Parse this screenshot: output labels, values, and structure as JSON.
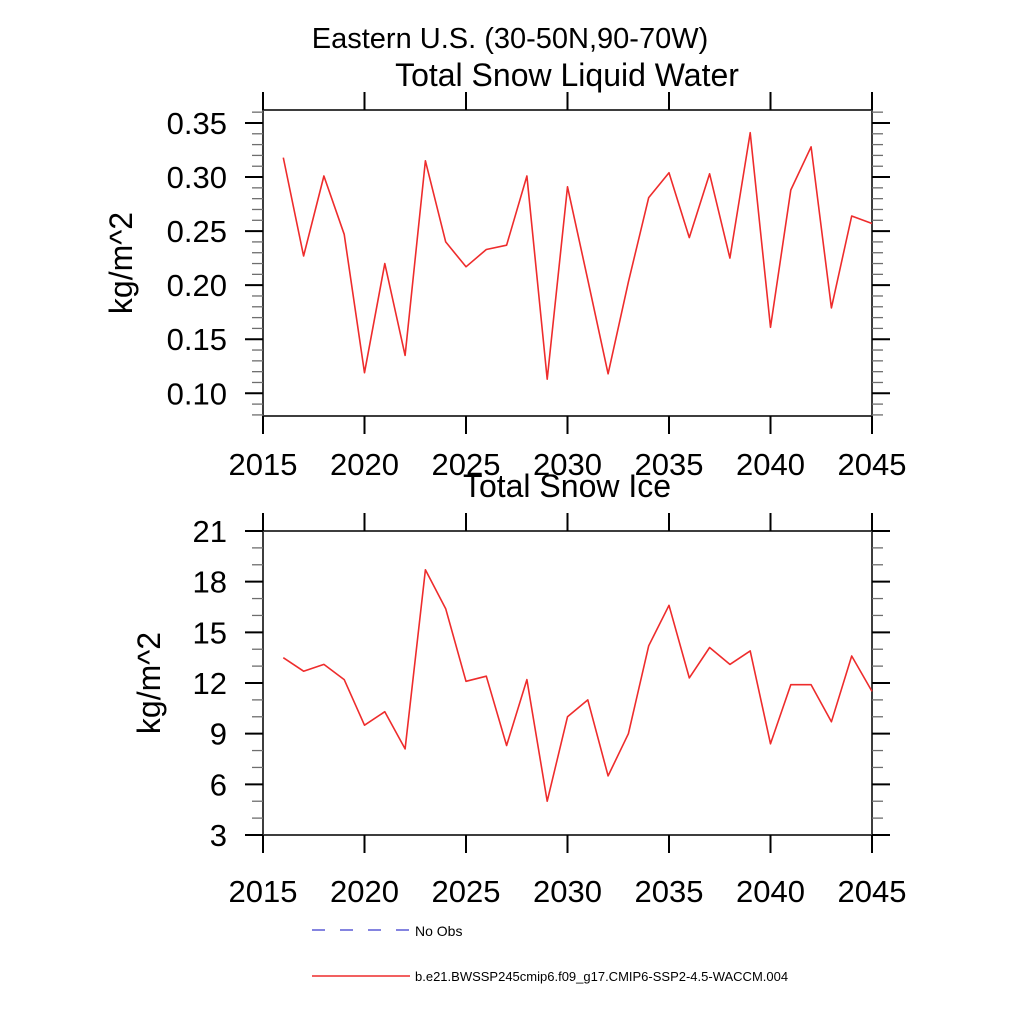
{
  "header": {
    "region_title": "Eastern U.S. (30-50N,90-70W)"
  },
  "style": {
    "series_color": "#ee2c2c",
    "no_obs_color": "#5b5bd6",
    "frame_color": "#3d3d3d",
    "major_tick_color": "#000000",
    "minor_tick_color": "#6e6e6e"
  },
  "legend": [
    {
      "label": "No Obs",
      "style": "dashed",
      "color": "#5b5bd6"
    },
    {
      "label": "b.e21.BWSSP245cmip6.f09_g17.CMIP6-SSP2-4.5-WACCM.004",
      "style": "solid",
      "color": "#ee2c2c"
    }
  ],
  "chart_data": [
    {
      "type": "line",
      "title": "Total Snow Liquid Water",
      "ylabel": "kg/m^2",
      "xlabel": "",
      "legend_position": "below",
      "grid": false,
      "x": [
        2016,
        2017,
        2018,
        2019,
        2020,
        2021,
        2022,
        2023,
        2024,
        2025,
        2026,
        2027,
        2028,
        2029,
        2030,
        2031,
        2032,
        2033,
        2034,
        2035,
        2036,
        2037,
        2038,
        2039,
        2040,
        2041,
        2042,
        2043,
        2044,
        2045
      ],
      "values": [
        0.318,
        0.227,
        0.301,
        0.247,
        0.119,
        0.22,
        0.135,
        0.315,
        0.24,
        0.217,
        0.233,
        0.237,
        0.301,
        0.113,
        0.291,
        0.205,
        0.118,
        0.203,
        0.281,
        0.304,
        0.244,
        0.303,
        0.225,
        0.341,
        0.161,
        0.288,
        0.328,
        0.179,
        0.264,
        0.257
      ],
      "xlim": [
        2015,
        2045
      ],
      "ylim": [
        0.079,
        0.362
      ],
      "xticks": [
        2015,
        2020,
        2025,
        2030,
        2035,
        2040,
        2045
      ],
      "yticks": [
        0.1,
        0.15,
        0.2,
        0.25,
        0.3,
        0.35
      ],
      "ytick_labels": [
        "0.10",
        "0.15",
        "0.20",
        "0.25",
        "0.30",
        "0.35"
      ],
      "y_minor_step": 0.01,
      "line_color": "#ee2c2c"
    },
    {
      "type": "line",
      "title": "Total Snow Ice",
      "ylabel": "kg/m^2",
      "xlabel": "",
      "legend_position": "below",
      "grid": false,
      "x": [
        2016,
        2017,
        2018,
        2019,
        2020,
        2021,
        2022,
        2023,
        2024,
        2025,
        2026,
        2027,
        2028,
        2029,
        2030,
        2031,
        2032,
        2033,
        2034,
        2035,
        2036,
        2037,
        2038,
        2039,
        2040,
        2041,
        2042,
        2043,
        2044,
        2045
      ],
      "values": [
        13.5,
        12.7,
        13.1,
        12.2,
        9.5,
        10.3,
        8.1,
        18.7,
        16.4,
        12.1,
        12.4,
        8.3,
        12.2,
        5.0,
        10.0,
        11.0,
        6.5,
        9.0,
        14.2,
        16.6,
        12.3,
        14.1,
        13.1,
        13.9,
        8.4,
        11.9,
        11.9,
        9.7,
        13.6,
        11.5
      ],
      "xlim": [
        2015,
        2045
      ],
      "ylim": [
        3,
        21
      ],
      "xticks": [
        2015,
        2020,
        2025,
        2030,
        2035,
        2040,
        2045
      ],
      "yticks": [
        3,
        6,
        9,
        12,
        15,
        18,
        21
      ],
      "ytick_labels": [
        "3",
        "6",
        "9",
        "12",
        "15",
        "18",
        "21"
      ],
      "y_minor_step": 1,
      "line_color": "#ee2c2c"
    }
  ]
}
